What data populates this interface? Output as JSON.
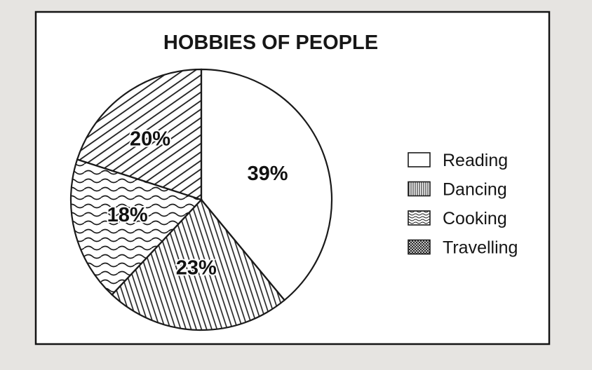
{
  "chart_data": {
    "type": "pie",
    "title": "HOBBIES OF PEOPLE",
    "categories": [
      "Reading",
      "Dancing",
      "Cooking",
      "Travelling"
    ],
    "values": [
      39,
      23,
      18,
      20
    ],
    "value_labels": [
      "39%",
      "23%",
      "18%",
      "20%"
    ],
    "start_angle_deg": 0,
    "direction": "clockwise",
    "legend_position": "right",
    "fills": {
      "Reading": "blank",
      "Dancing": "vertical-lines",
      "Cooking": "wavy-lines",
      "Travelling": "diagonal-lines"
    }
  }
}
